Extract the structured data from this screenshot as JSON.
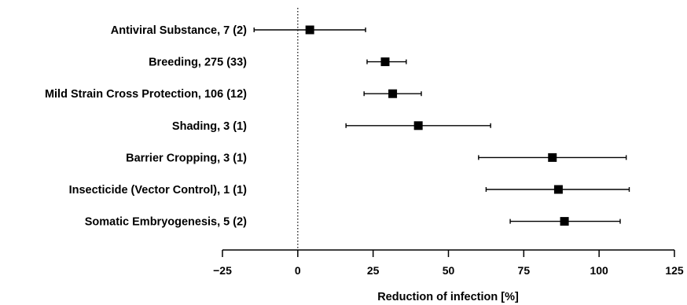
{
  "chart_data": {
    "type": "forest",
    "title": "",
    "xlabel": "Reduction of infection [%]",
    "ylabel": "",
    "xlim": [
      -25,
      125
    ],
    "xticks": [
      -25,
      0,
      25,
      50,
      75,
      100,
      125
    ],
    "xtick_labels": [
      "−25",
      "0",
      "25",
      "50",
      "75",
      "100",
      "125"
    ],
    "reference_line": 0,
    "grid": false,
    "categories": [
      "Antiviral Substance, 7 (2)",
      "Breeding, 275 (33)",
      "Mild Strain Cross Protection, 106 (12)",
      "Shading, 3 (1)",
      "Barrier Cropping, 3 (1)",
      "Insecticide (Vector Control), 1 (1)",
      "Somatic Embryogenesis, 5 (2)"
    ],
    "estimates": [
      4,
      29,
      31.5,
      40,
      84.5,
      86.5,
      88.5
    ],
    "ci_lower": [
      -14.5,
      23,
      22,
      16,
      60,
      62.5,
      70.5
    ],
    "ci_upper": [
      22.5,
      36,
      41,
      64,
      109,
      110,
      107
    ],
    "marker": "square",
    "color": "#000000"
  }
}
